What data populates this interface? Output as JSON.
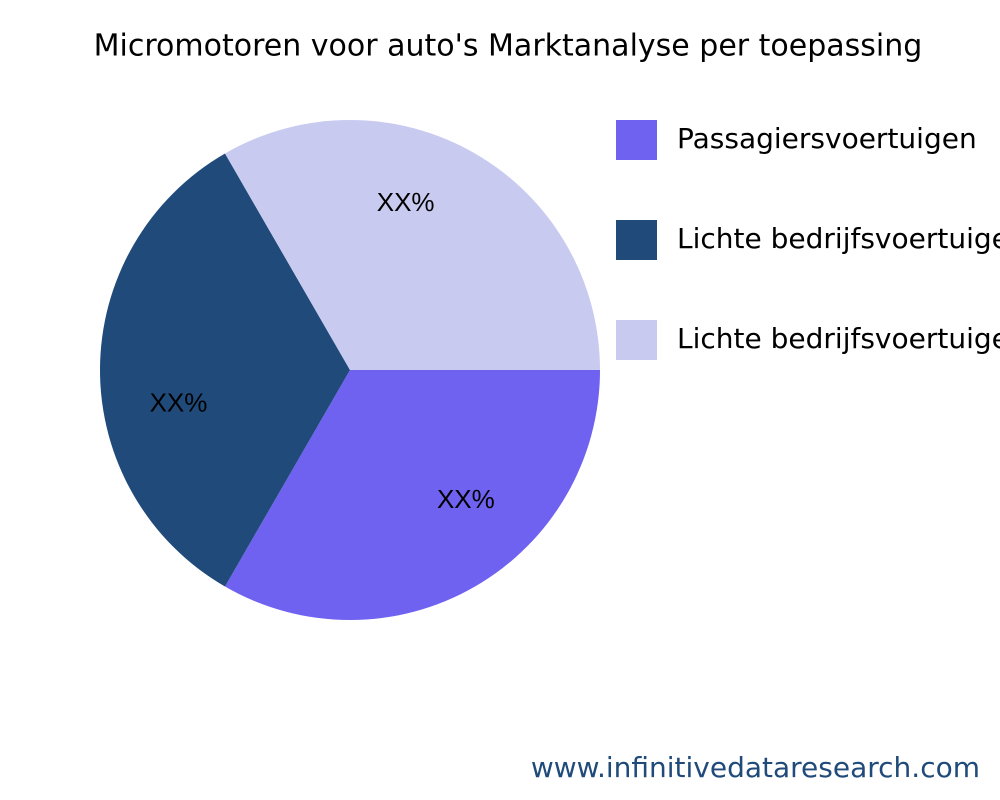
{
  "chart_data": {
    "type": "pie",
    "title": "Micromotoren voor auto's Marktanalyse per toepassing",
    "categories": [
      "Passagiersvoertuigen",
      "Lichte bedrijfsvoertuigen",
      "Lichte bedrijfsvoertuigen"
    ],
    "values": [
      33.33,
      33.33,
      33.33
    ],
    "value_labels": [
      "XX%",
      "XX%",
      "XX%"
    ],
    "colors": [
      "#6f62f0",
      "#1f4a7a",
      "#c9caf0"
    ],
    "source": "www.infinitivedataresearch.com"
  }
}
